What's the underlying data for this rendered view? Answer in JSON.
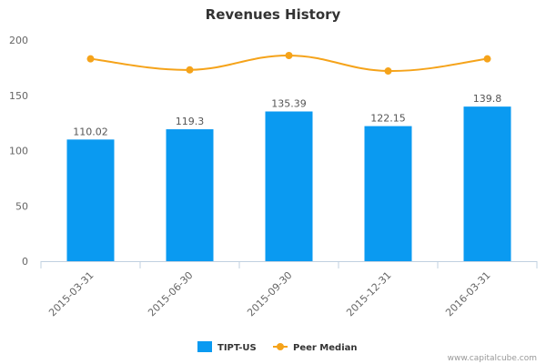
{
  "chart_data": {
    "type": "bar",
    "title": "Revenues History",
    "categories": [
      "2015-03-31",
      "2015-06-30",
      "2015-09-30",
      "2015-12-31",
      "2016-03-31"
    ],
    "series": [
      {
        "name": "TIPT-US",
        "type": "bar",
        "values": [
          110.02,
          119.3,
          135.39,
          122.15,
          139.8
        ],
        "data_labels": [
          "110.02",
          "119.3",
          "135.39",
          "122.15",
          "139.8"
        ],
        "color": "#0a9af1"
      },
      {
        "name": "Peer Median",
        "type": "line",
        "values": [
          183,
          173,
          186,
          172,
          183
        ],
        "color": "#f5a31a"
      }
    ],
    "yticks": [
      "0",
      "50",
      "100",
      "150",
      "200"
    ],
    "ylim": [
      0,
      200
    ],
    "grid": false,
    "legend_position": "bottom-center",
    "credit": "www.capitalcube.com"
  }
}
